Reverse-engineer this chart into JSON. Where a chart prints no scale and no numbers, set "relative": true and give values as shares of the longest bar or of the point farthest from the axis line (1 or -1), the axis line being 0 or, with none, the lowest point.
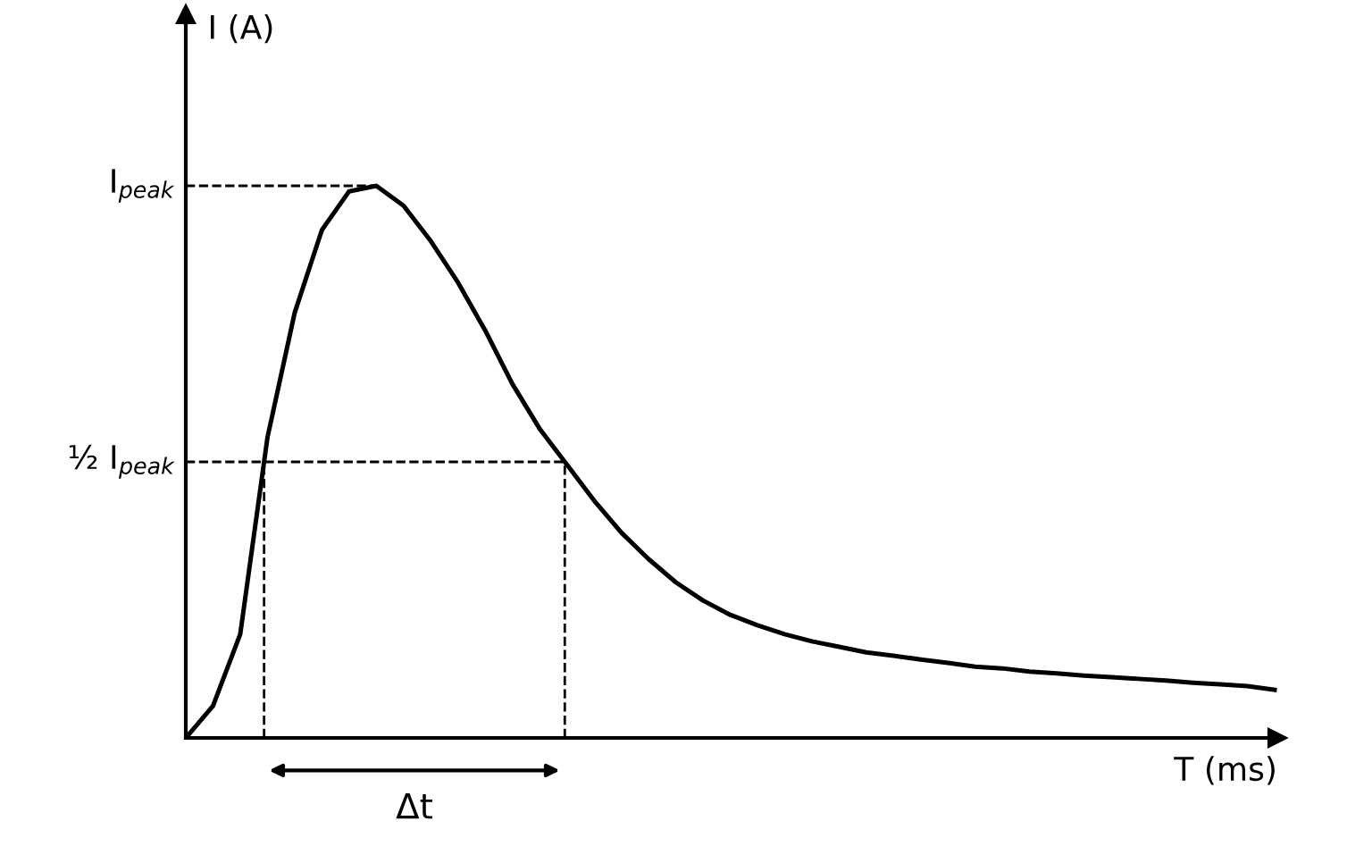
{
  "chart_data": {
    "type": "line",
    "relative": true,
    "xlabel": "T (ms)",
    "ylabel": "I (A)",
    "categories": [
      null,
      null,
      null,
      null,
      null,
      null,
      null,
      null,
      null,
      null,
      null,
      null,
      null,
      null,
      null,
      null,
      null,
      null,
      null,
      null,
      null,
      null,
      null,
      null,
      null,
      null,
      null,
      null,
      null,
      null,
      null,
      null,
      null,
      null,
      null,
      null,
      null,
      null,
      null,
      null,
      null
    ],
    "series": [
      {
        "color": "#000000",
        "values": [
          0,
          0.058,
          0.188,
          0.544,
          0.77,
          0.92,
          0.99,
          1,
          0.964,
          0.9,
          0.825,
          0.738,
          0.641,
          0.56,
          0.495,
          0.43,
          0.372,
          0.324,
          0.282,
          0.249,
          0.223,
          0.204,
          0.188,
          0.175,
          0.165,
          0.155,
          0.149,
          0.142,
          0.136,
          0.129,
          0.126,
          0.12,
          0.117,
          0.113,
          0.11,
          0.107,
          0.104,
          0.1,
          0.097,
          0.094,
          0.087
        ]
      }
    ],
    "ref_lines": [
      {
        "axis": "y",
        "value": 1,
        "label": "I$_{peak}$",
        "line_style": "dashed"
      },
      {
        "axis": "y",
        "value": 0.5,
        "label": "½ I$_{peak}$",
        "line_style": "dashed"
      }
    ],
    "annotations": [
      "Δt"
    ],
    "legend": false,
    "marker": "none",
    "line_style": "solid"
  }
}
